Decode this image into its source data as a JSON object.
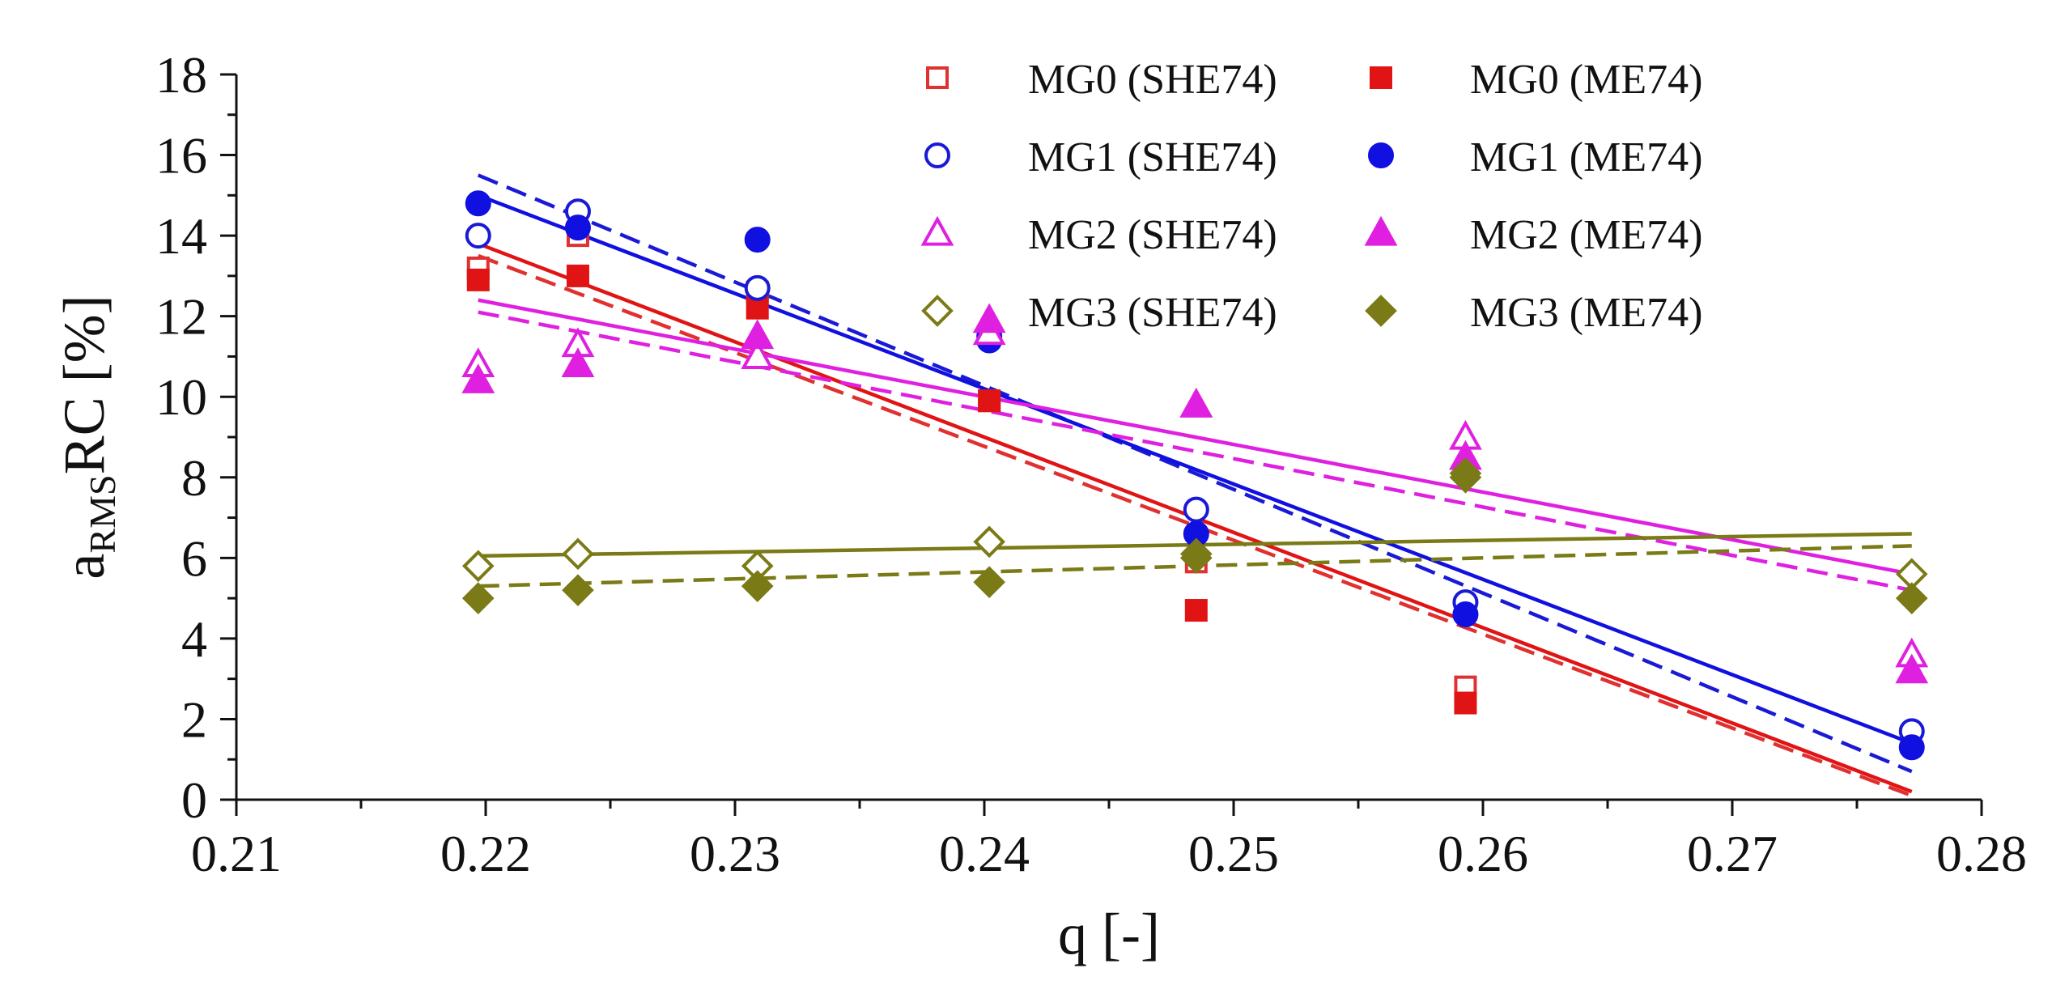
{
  "chart_data": {
    "type": "scatter",
    "xlabel": "q [-]",
    "ylabel": {
      "main": "a",
      "subscript": "RMS",
      "suffix": "RC [%]"
    },
    "xlim": [
      0.21,
      0.28
    ],
    "ylim": [
      0,
      18
    ],
    "x_ticks": [
      "0.21",
      "0.22",
      "0.23",
      "0.24",
      "0.25",
      "0.26",
      "0.27",
      "0.28"
    ],
    "y_ticks": [
      "0",
      "2",
      "4",
      "6",
      "8",
      "10",
      "12",
      "14",
      "16",
      "18"
    ],
    "x": [
      0.2197,
      0.2237,
      0.2309,
      0.2402,
      0.2485,
      0.2593,
      0.2772
    ],
    "series": [
      {
        "name": "MG0 (SHE74)",
        "color": "#e03030",
        "marker": "square-open",
        "values": [
          13.2,
          14.0,
          12.6,
          9.9,
          5.9,
          2.8,
          null
        ],
        "fit": {
          "style": "dashed",
          "from": [
            0.2197,
            13.5
          ],
          "to": [
            0.2772,
            0.1
          ]
        }
      },
      {
        "name": "MG0 (ME74)",
        "color": "#e01414",
        "marker": "square-filled",
        "values": [
          12.9,
          13.0,
          12.2,
          9.9,
          4.7,
          2.4,
          null
        ],
        "fit": {
          "style": "solid",
          "from": [
            0.2197,
            13.8
          ],
          "to": [
            0.2772,
            0.2
          ]
        }
      },
      {
        "name": "MG1 (SHE74)",
        "color": "#1a1ad6",
        "marker": "circle-open",
        "values": [
          14.0,
          14.6,
          12.7,
          11.5,
          7.2,
          4.9,
          1.7
        ],
        "fit": {
          "style": "dashed",
          "from": [
            0.2197,
            15.5
          ],
          "to": [
            0.2772,
            0.7
          ]
        }
      },
      {
        "name": "MG1 (ME74)",
        "color": "#1010e0",
        "marker": "circle-filled",
        "values": [
          14.8,
          14.2,
          13.9,
          11.4,
          6.6,
          4.6,
          1.3
        ],
        "fit": {
          "style": "solid",
          "from": [
            0.2197,
            15.0
          ],
          "to": [
            0.2772,
            1.4
          ]
        }
      },
      {
        "name": "MG2 (SHE74)",
        "color": "#e020e0",
        "marker": "triangle-open",
        "values": [
          10.8,
          11.3,
          11.0,
          11.6,
          9.8,
          9.0,
          3.6
        ],
        "fit": {
          "style": "dashed",
          "from": [
            0.2197,
            12.1
          ],
          "to": [
            0.2772,
            5.2
          ]
        }
      },
      {
        "name": "MG2 (ME74)",
        "color": "#e020e0",
        "marker": "triangle-filled",
        "values": [
          10.4,
          10.8,
          11.5,
          11.9,
          9.8,
          8.5,
          3.2
        ],
        "fit": {
          "style": "solid",
          "from": [
            0.2197,
            12.4
          ],
          "to": [
            0.2772,
            5.6
          ]
        }
      },
      {
        "name": "MG3 (SHE74)",
        "color": "#7a7a16",
        "marker": "diamond-open",
        "values": [
          5.8,
          6.1,
          5.8,
          6.4,
          6.1,
          8.0,
          5.6
        ],
        "fit": {
          "style": "solid",
          "from": [
            0.2197,
            6.05
          ],
          "to": [
            0.2772,
            6.6
          ]
        }
      },
      {
        "name": "MG3 (ME74)",
        "color": "#7a7a16",
        "marker": "diamond-filled",
        "values": [
          5.0,
          5.2,
          5.3,
          5.4,
          6.0,
          8.1,
          5.0
        ],
        "fit": {
          "style": "dashed",
          "from": [
            0.2197,
            5.3
          ],
          "to": [
            0.2772,
            6.3
          ]
        }
      }
    ],
    "legend_location": "top-right",
    "grid": false
  }
}
